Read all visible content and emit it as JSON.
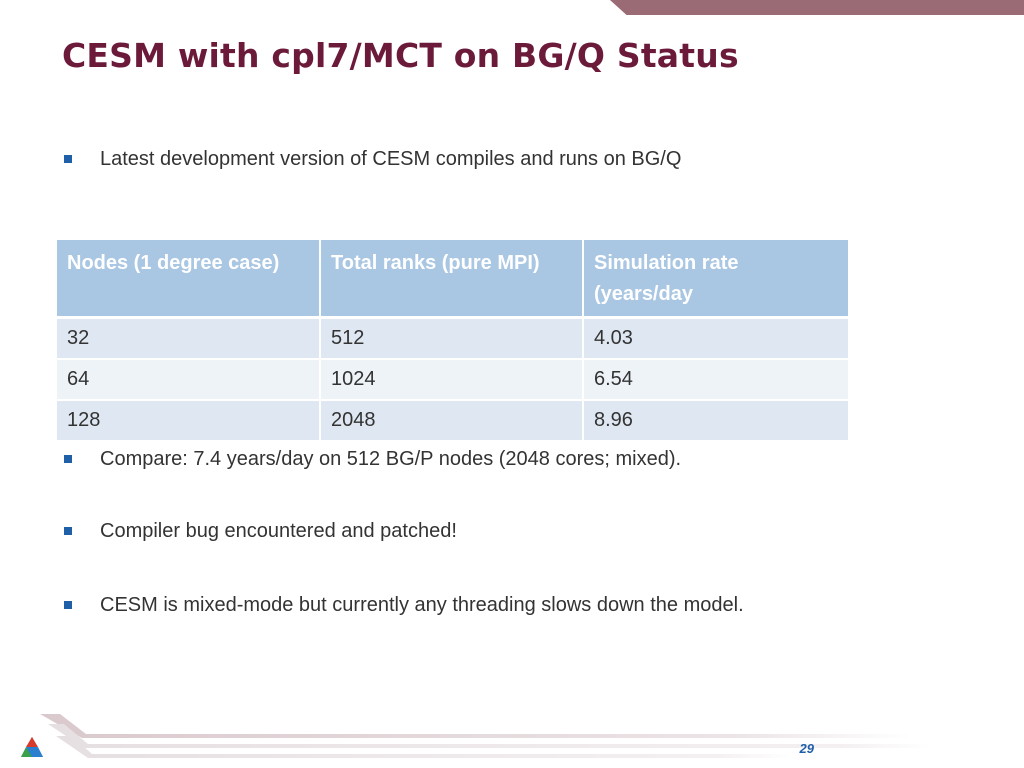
{
  "slide": {
    "title": "CESM with cpl7/MCT on BG/Q Status",
    "page_number": "29"
  },
  "bullets": {
    "b1": "Latest development version of CESM compiles and runs on BG/Q",
    "b2": "Compare:  7.4 years/day on 512 BG/P nodes (2048 cores; mixed).",
    "b3": "Compiler bug encountered and patched!",
    "b4": "CESM is mixed-mode but currently any threading slows down the model."
  },
  "table": {
    "headers": [
      "Nodes (1 degree case)",
      "Total ranks (pure MPI)",
      "Simulation rate (years/day"
    ],
    "rows": [
      [
        "32",
        "512",
        "4.03"
      ],
      [
        "64",
        "1024",
        "6.54"
      ],
      [
        "128",
        "2048",
        "8.96"
      ]
    ]
  },
  "colors": {
    "title": "#6b1a3a",
    "bullet": "#1f5fa8",
    "table_header": "#a9c6e2",
    "row_odd": "#dfe8f2",
    "row_even": "#eef3f8",
    "top_band": "#9a6b74"
  },
  "icons": {
    "logo": "argonne-logo-icon",
    "bullet": "square-bullet-icon"
  }
}
